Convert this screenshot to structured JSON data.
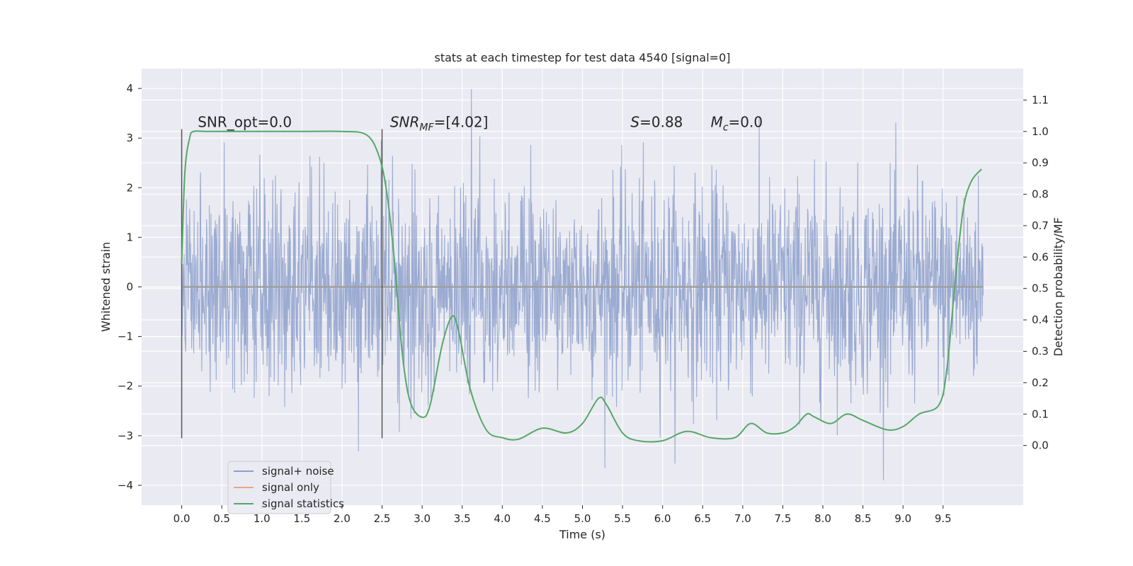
{
  "chart_data": {
    "type": "line",
    "title": "stats at each timestep for test data 4540 [signal=0]",
    "xlabel": "Time (s)",
    "ylabel": "Whitened strain",
    "y2label": "Detection probability/MF",
    "xlim": [
      -0.5,
      10.5
    ],
    "ylim": [
      -4.4,
      4.4
    ],
    "y2lim": [
      -0.19,
      1.2
    ],
    "xticks": [
      0.0,
      0.5,
      1.0,
      1.5,
      2.0,
      2.5,
      3.0,
      3.5,
      4.0,
      4.5,
      5.0,
      5.5,
      6.0,
      6.5,
      7.0,
      7.5,
      8.0,
      8.5,
      9.0,
      9.5
    ],
    "xtick_labels": [
      "0.0",
      "0.5",
      "1.0",
      "1.5",
      "2.0",
      "2.5",
      "3.0",
      "3.5",
      "4.0",
      "4.5",
      "5.0",
      "5.5",
      "6.0",
      "6.5",
      "7.0",
      "7.5",
      "8.0",
      "8.5",
      "9.0",
      "9.5"
    ],
    "yticks": [
      4,
      3,
      2,
      1,
      0,
      -1,
      -2,
      -3,
      -4
    ],
    "ytick_labels": [
      "4",
      "3",
      "2",
      "1",
      "0",
      "−1",
      "−2",
      "−3",
      "−4"
    ],
    "y2ticks": [
      1.1,
      1.0,
      0.9,
      0.8,
      0.7,
      0.6,
      0.5,
      0.4,
      0.3,
      0.2,
      0.1,
      0.0
    ],
    "y2tick_labels": [
      "1.1",
      "1.0",
      "0.9",
      "0.8",
      "0.7",
      "0.6",
      "0.5",
      "0.4",
      "0.3",
      "0.2",
      "0.1",
      "0.0"
    ],
    "grid": true,
    "legend_position": "lower-left",
    "series": [
      {
        "name": "signal+ noise",
        "color": "#8da0cb",
        "kind": "noise",
        "x_range": [
          0,
          10
        ],
        "amplitude_std": 1.0,
        "approx_max": 4.05,
        "approx_min": -3.9
      },
      {
        "name": "signal only",
        "color": "#e8a58a",
        "kind": "flat",
        "x": [
          0,
          10
        ],
        "y": [
          0,
          0
        ]
      },
      {
        "name": "signal statistics",
        "color": "#55a868",
        "axis": "right",
        "x": [
          0.0,
          0.04,
          0.1,
          0.15,
          0.3,
          0.6,
          1.0,
          1.5,
          2.0,
          2.3,
          2.45,
          2.55,
          2.65,
          2.75,
          2.85,
          3.0,
          3.1,
          3.25,
          3.37,
          3.45,
          3.6,
          3.8,
          4.0,
          4.2,
          4.5,
          4.8,
          5.0,
          5.2,
          5.3,
          5.5,
          5.7,
          6.0,
          6.3,
          6.6,
          6.9,
          7.1,
          7.3,
          7.5,
          7.65,
          7.8,
          7.9,
          8.1,
          8.3,
          8.5,
          8.8,
          9.0,
          9.2,
          9.45,
          9.55,
          9.65,
          9.75,
          9.85,
          9.98
        ],
        "y": [
          0.58,
          0.87,
          0.98,
          1.0,
          1.0,
          1.0,
          1.0,
          1.0,
          1.0,
          0.99,
          0.93,
          0.82,
          0.6,
          0.3,
          0.14,
          0.09,
          0.13,
          0.32,
          0.41,
          0.37,
          0.18,
          0.05,
          0.025,
          0.02,
          0.055,
          0.04,
          0.07,
          0.15,
          0.13,
          0.04,
          0.015,
          0.015,
          0.045,
          0.025,
          0.025,
          0.07,
          0.04,
          0.04,
          0.06,
          0.1,
          0.09,
          0.07,
          0.1,
          0.08,
          0.05,
          0.06,
          0.1,
          0.13,
          0.25,
          0.52,
          0.75,
          0.84,
          0.88
        ]
      }
    ],
    "vertical_lines": [
      {
        "x": 0.0,
        "ymin": -3.05,
        "ymax": 3.18,
        "color": "#555555"
      },
      {
        "x": 2.5,
        "ymin": -3.05,
        "ymax": 3.18,
        "color": "#555555"
      }
    ],
    "annotations": [
      {
        "id": "snr-opt",
        "text": "SNR_opt=0.0",
        "x": 0.2,
        "y": 3.22
      },
      {
        "id": "snr-mf",
        "text": "SNRMF=[4.02]",
        "x": 2.6,
        "y": 3.22
      },
      {
        "id": "s-val",
        "text": "S=0.88",
        "x": 5.6,
        "y": 3.22
      },
      {
        "id": "mc-val",
        "text": "Mc=0.0",
        "x": 6.6,
        "y": 3.22
      }
    ]
  },
  "annotation_parts": {
    "snr_opt": "SNR_opt=0.0",
    "snr_mf_base": "SNR",
    "snr_mf_sub": "MF",
    "snr_mf_value": "=[4.02]",
    "s_var": "S",
    "s_value": "=0.88",
    "mc_var": "M",
    "mc_sub": "c",
    "mc_value": "=0.0"
  },
  "colors": {
    "background": "#eaeaf2",
    "grid": "#ffffff",
    "text": "#262626"
  }
}
